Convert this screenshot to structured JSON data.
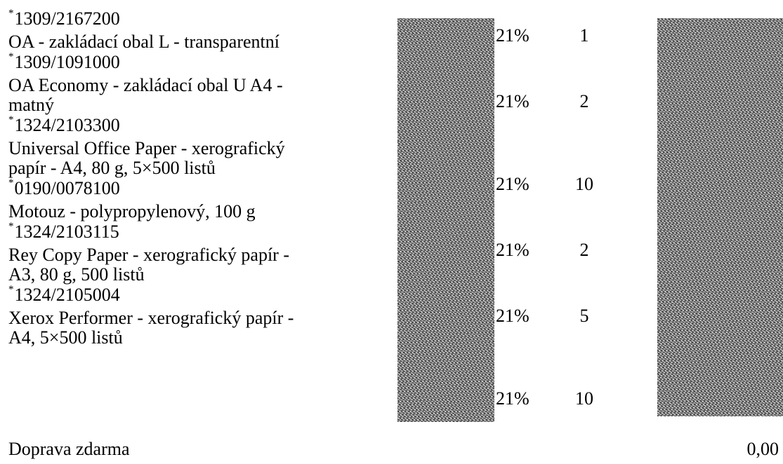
{
  "items": [
    {
      "code": "1309/2167200",
      "name_lines": [
        "OA - zakládací obal L - transparentní"
      ],
      "vat": "21%",
      "qty": "1"
    },
    {
      "code": "1309/1091000",
      "name_lines": [
        "OA Economy - zakládací obal U A4 -",
        "matný"
      ],
      "vat": "21%",
      "qty": "2"
    },
    {
      "code": "1324/2103300",
      "name_lines": [
        "Universal Office Paper - xerografický",
        "papír - A4, 80 g, 5×500 listů"
      ],
      "vat": "21%",
      "qty": "10"
    },
    {
      "code": "0190/0078100",
      "name_lines": [
        "Motouz - polypropylenový, 100 g"
      ],
      "vat": "21%",
      "qty": "2"
    },
    {
      "code": "1324/2103115",
      "name_lines": [
        "Rey Copy Paper - xerografický papír -",
        "A3, 80 g, 500 listů"
      ],
      "vat": "21%",
      "qty": "5"
    },
    {
      "code": "1324/2105004",
      "name_lines": [
        "Xerox Performer - xerografický papír -",
        "A4, 5×500 listů"
      ],
      "vat": "21%",
      "qty": "10"
    }
  ],
  "code_marker": "*",
  "shipping": {
    "label": "Doprava zdarma",
    "price": "0,00"
  }
}
